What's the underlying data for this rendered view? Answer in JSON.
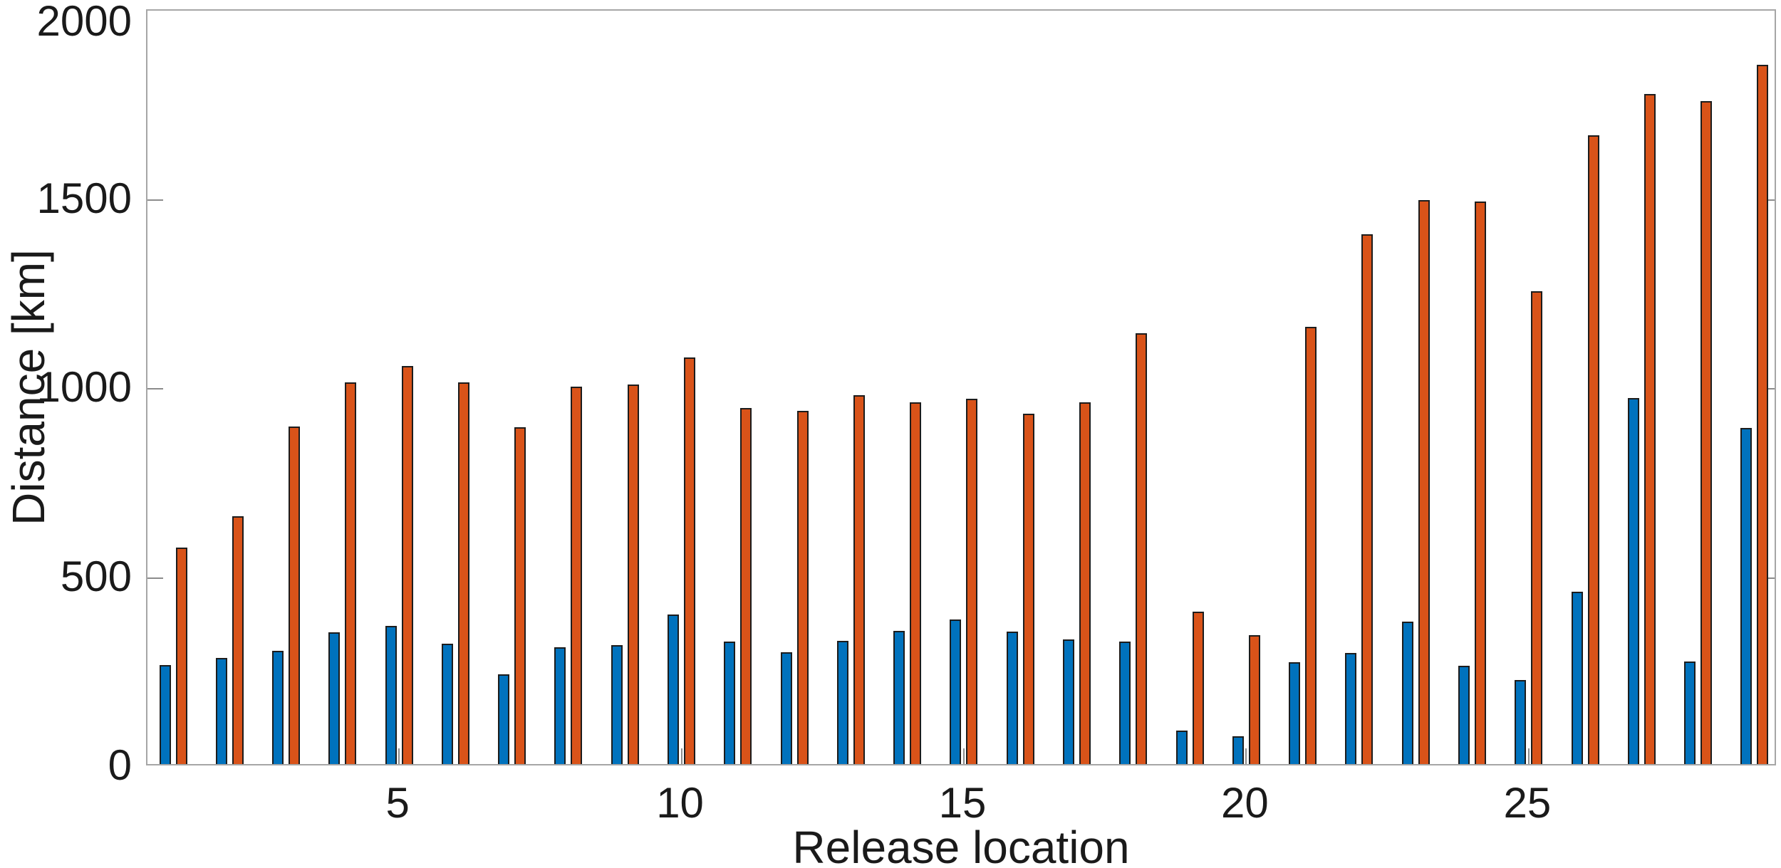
{
  "chart_data": {
    "type": "bar",
    "title": "",
    "xlabel": "Release location",
    "ylabel": "Distance [km]",
    "ylim": [
      0,
      2000
    ],
    "yticks": [
      0,
      500,
      1000,
      1500,
      2000
    ],
    "ytick_labels": [
      "0",
      "500",
      "1000",
      "1500",
      "2000"
    ],
    "xticks": [
      5,
      10,
      15,
      20,
      25
    ],
    "xtick_labels": [
      "5",
      "10",
      "15",
      "20",
      "25"
    ],
    "grid": false,
    "legend_position": "none",
    "categories": [
      1,
      2,
      3,
      4,
      5,
      6,
      7,
      8,
      9,
      10,
      11,
      12,
      13,
      14,
      15,
      16,
      17,
      18,
      19,
      20,
      21,
      22,
      23,
      24,
      25,
      26,
      27,
      28,
      29
    ],
    "series": [
      {
        "name": "blue",
        "color": "#0072BD",
        "values": [
          262,
          280,
          300,
          348,
          365,
          318,
          237,
          309,
          315,
          395,
          323,
          296,
          325,
          353,
          383,
          351,
          330,
          323,
          88,
          73,
          270,
          294,
          376,
          260,
          223,
          455,
          968,
          272,
          888
        ]
      },
      {
        "name": "orange",
        "color": "#D95319",
        "values": [
          572,
          655,
          892,
          1009,
          1053,
          1009,
          891,
          998,
          1004,
          1075,
          941,
          934,
          975,
          957,
          966,
          926,
          957,
          1140,
          403,
          341,
          1157,
          1402,
          1492,
          1487,
          1251,
          1662,
          1772,
          1753,
          1849
        ]
      }
    ]
  },
  "colors": {
    "bar_blue": "#0072BD",
    "bar_orange": "#D95319",
    "bar_edge": "#1c1c1c",
    "axis_box": "#a6a6a6",
    "tick": "#8c8c8c",
    "text": "#1a1a1a",
    "background": "#ffffff"
  }
}
